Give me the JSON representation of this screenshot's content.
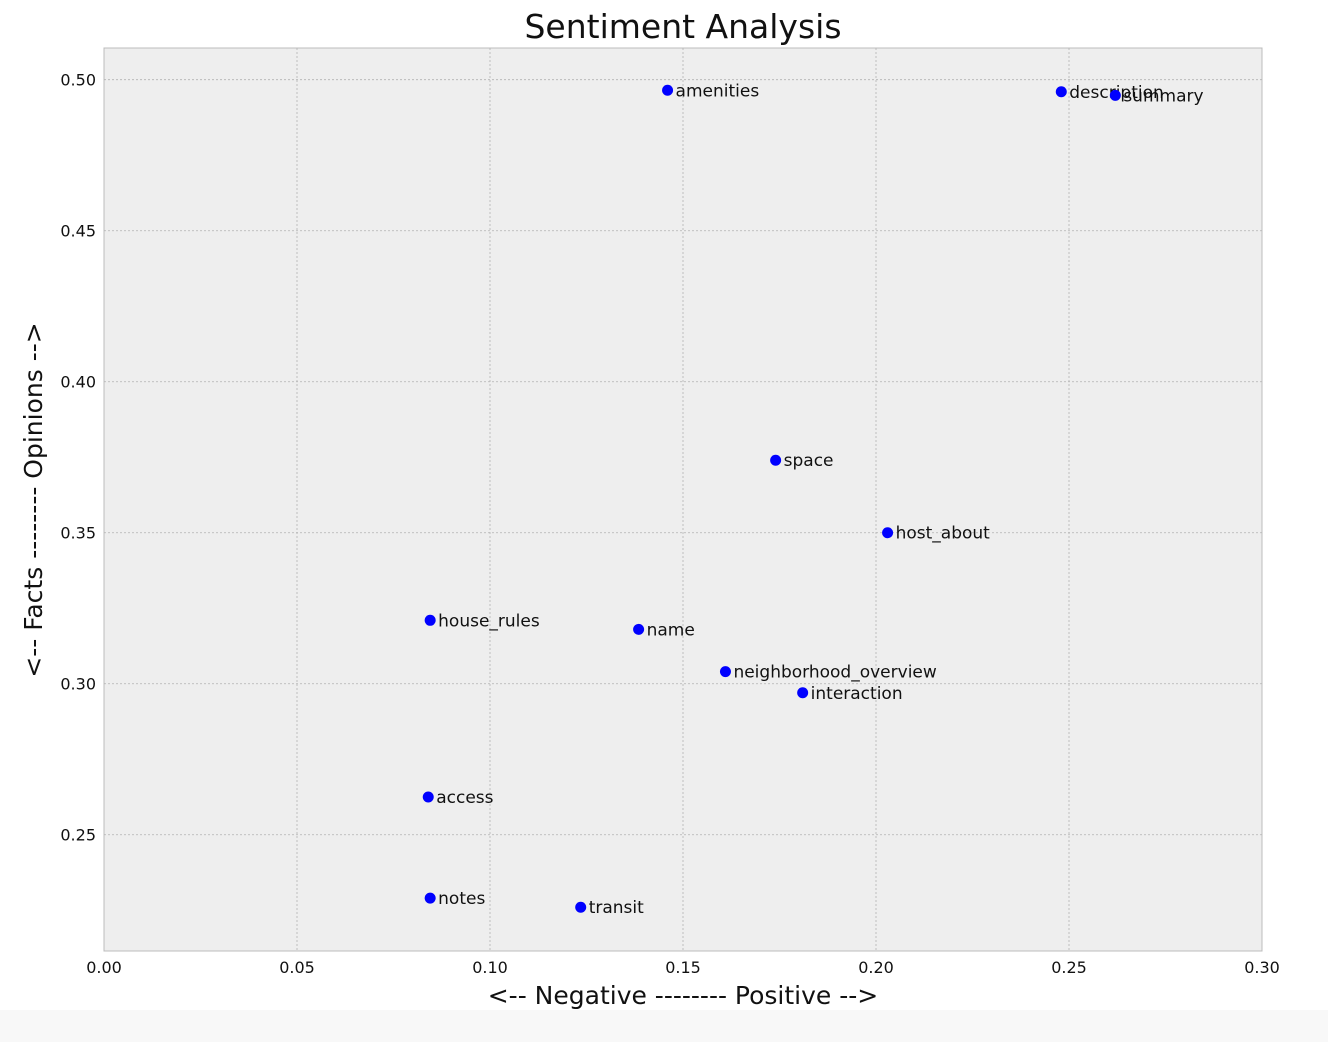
{
  "chart_data": {
    "type": "scatter",
    "title": "Sentiment Analysis",
    "xlabel": "<-- Negative -------- Positive -->",
    "ylabel": "<-- Facts -------- Opinions -->",
    "xlim": [
      0.0,
      0.3
    ],
    "ylim": [
      0.2115,
      0.5105
    ],
    "x_ticks": [
      "0.00",
      "0.05",
      "0.10",
      "0.15",
      "0.20",
      "0.25",
      "0.30"
    ],
    "x_tick_values": [
      0.0,
      0.05,
      0.1,
      0.15,
      0.2,
      0.25,
      0.3
    ],
    "y_ticks": [
      "0.25",
      "0.30",
      "0.35",
      "0.40",
      "0.45",
      "0.50"
    ],
    "y_tick_values": [
      0.25,
      0.3,
      0.35,
      0.4,
      0.45,
      0.5
    ],
    "grid": true,
    "point_color": "#0000ff",
    "points": [
      {
        "label": "amenities",
        "x": 0.146,
        "y": 0.4965
      },
      {
        "label": "description",
        "x": 0.248,
        "y": 0.496
      },
      {
        "label": "summary",
        "x": 0.262,
        "y": 0.4948
      },
      {
        "label": "space",
        "x": 0.174,
        "y": 0.374
      },
      {
        "label": "host_about",
        "x": 0.203,
        "y": 0.35
      },
      {
        "label": "house_rules",
        "x": 0.0845,
        "y": 0.321
      },
      {
        "label": "name",
        "x": 0.1385,
        "y": 0.318
      },
      {
        "label": "neighborhood_overview",
        "x": 0.161,
        "y": 0.304
      },
      {
        "label": "interaction",
        "x": 0.181,
        "y": 0.297
      },
      {
        "label": "access",
        "x": 0.084,
        "y": 0.2625
      },
      {
        "label": "notes",
        "x": 0.0845,
        "y": 0.229
      },
      {
        "label": "transit",
        "x": 0.1235,
        "y": 0.226
      }
    ]
  }
}
